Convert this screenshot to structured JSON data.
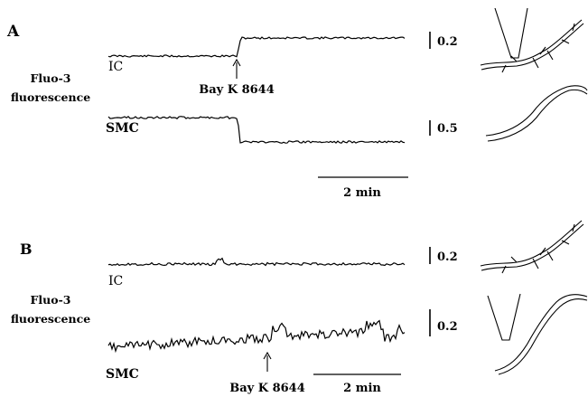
{
  "panel_a": {
    "letter": "A",
    "side_label_line1": "Fluo-3",
    "side_label_line2": "fluorescence",
    "ic_label": "IC",
    "smc_label": "SMC",
    "drug_label": "Bay K 8644",
    "ic_scale": "0.2",
    "smc_scale": "0.5",
    "time_scale": "2 min"
  },
  "panel_b": {
    "letter": "B",
    "side_label_line1": "Fluo-3",
    "side_label_line2": "fluorescence",
    "ic_label": "IC",
    "smc_label": "SMC",
    "drug_label": "Bay K 8644",
    "ic_scale": "0.2",
    "smc_scale": "0.2",
    "time_scale": "2 min"
  }
}
